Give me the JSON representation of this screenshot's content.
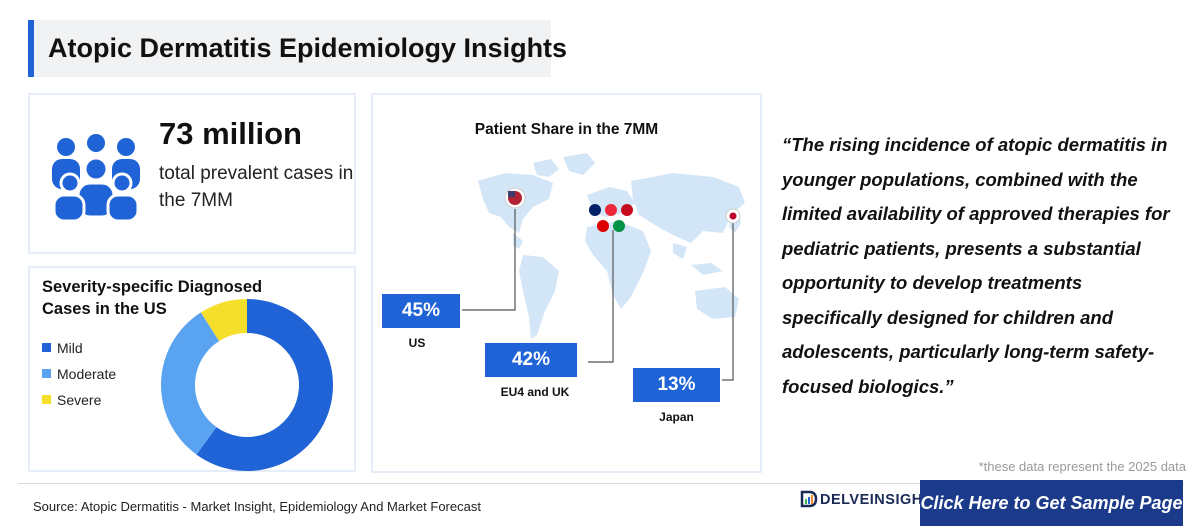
{
  "header": {
    "title": "Atopic Dermatitis Epidemiology Insights"
  },
  "prevalence": {
    "value": "73 million",
    "text": "total prevalent cases in the 7MM"
  },
  "severity": {
    "title": "Severity-specific Diagnosed Cases in the US",
    "legend": [
      {
        "label": "Mild",
        "color": "#1f63d6"
      },
      {
        "label": "Moderate",
        "color": "#5aa3f0"
      },
      {
        "label": "Severe",
        "color": "#f6df2b"
      }
    ]
  },
  "patient_share": {
    "title": "Patient Share in the 7MM",
    "regions": [
      {
        "label": "US",
        "value": "45%"
      },
      {
        "label": "EU4 and UK",
        "value": "42%"
      },
      {
        "label": "Japan",
        "value": "13%"
      }
    ]
  },
  "quote": "“The rising incidence of atopic dermatitis in younger populations, combined with the limited availability of approved therapies for pediatric patients, presents a substantial opportunity to develop treatments specifically designed for children and adolescents, particularly long-term safety-focused biologics.”",
  "note": "*these data represent the 2025 data",
  "footer": {
    "source": "Source: Atopic Dermatitis - Market Insight, Epidemiology And Market Forecast",
    "logo": "DELVEINSIGHT",
    "cta": "Click Here to Get Sample Page"
  },
  "colors": {
    "accent": "#1f63d6",
    "cta_bg": "#1c3a8a",
    "map": "#d3e6f7"
  },
  "chart_data": [
    {
      "type": "pie",
      "title": "Severity-specific Diagnosed Cases in the US",
      "categories": [
        "Mild",
        "Moderate",
        "Severe"
      ],
      "values": [
        60,
        31,
        9
      ],
      "colors": [
        "#1f63d6",
        "#5aa3f0",
        "#f6df2b"
      ],
      "donut": true,
      "legend": "left"
    },
    {
      "type": "bar",
      "title": "Patient Share in the 7MM",
      "categories": [
        "US",
        "EU4 and UK",
        "Japan"
      ],
      "values": [
        45,
        42,
        13
      ],
      "unit": "%"
    }
  ]
}
